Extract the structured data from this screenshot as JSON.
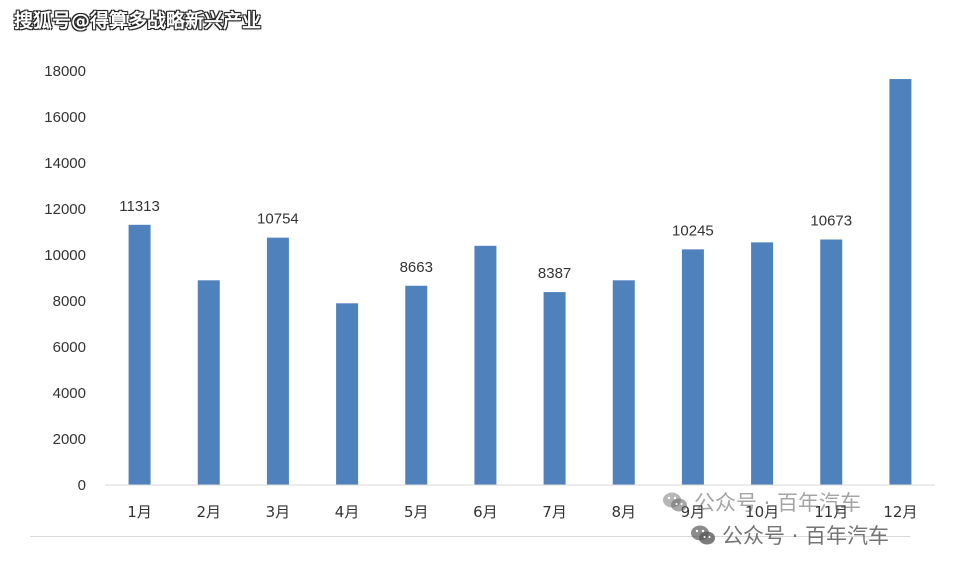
{
  "watermark_top": "搜狐号@得算多战略新兴产业",
  "watermark_1": "公众号 · 百年汽车",
  "watermark_2": "公众号 · 百年汽车",
  "colors": {
    "bar": "#4f81bd",
    "axis": "#d9d9d9",
    "text": "#333333"
  },
  "chart_data": {
    "type": "bar",
    "title": "",
    "xlabel": "",
    "ylabel": "",
    "categories": [
      "1月",
      "2月",
      "3月",
      "4月",
      "5月",
      "6月",
      "7月",
      "8月",
      "9月",
      "10月",
      "11月",
      "12月"
    ],
    "values": [
      11313,
      8900,
      10754,
      7900,
      8663,
      10400,
      8387,
      8900,
      10245,
      10550,
      10673,
      17650
    ],
    "data_labels": [
      "11313",
      "",
      "10754",
      "",
      "8663",
      "",
      "8387",
      "",
      "10245",
      "",
      "10673",
      ""
    ],
    "ylim": [
      0,
      18000
    ],
    "yticks": [
      0,
      2000,
      4000,
      6000,
      8000,
      10000,
      12000,
      14000,
      16000,
      18000
    ],
    "grid": false,
    "legend": "none"
  }
}
